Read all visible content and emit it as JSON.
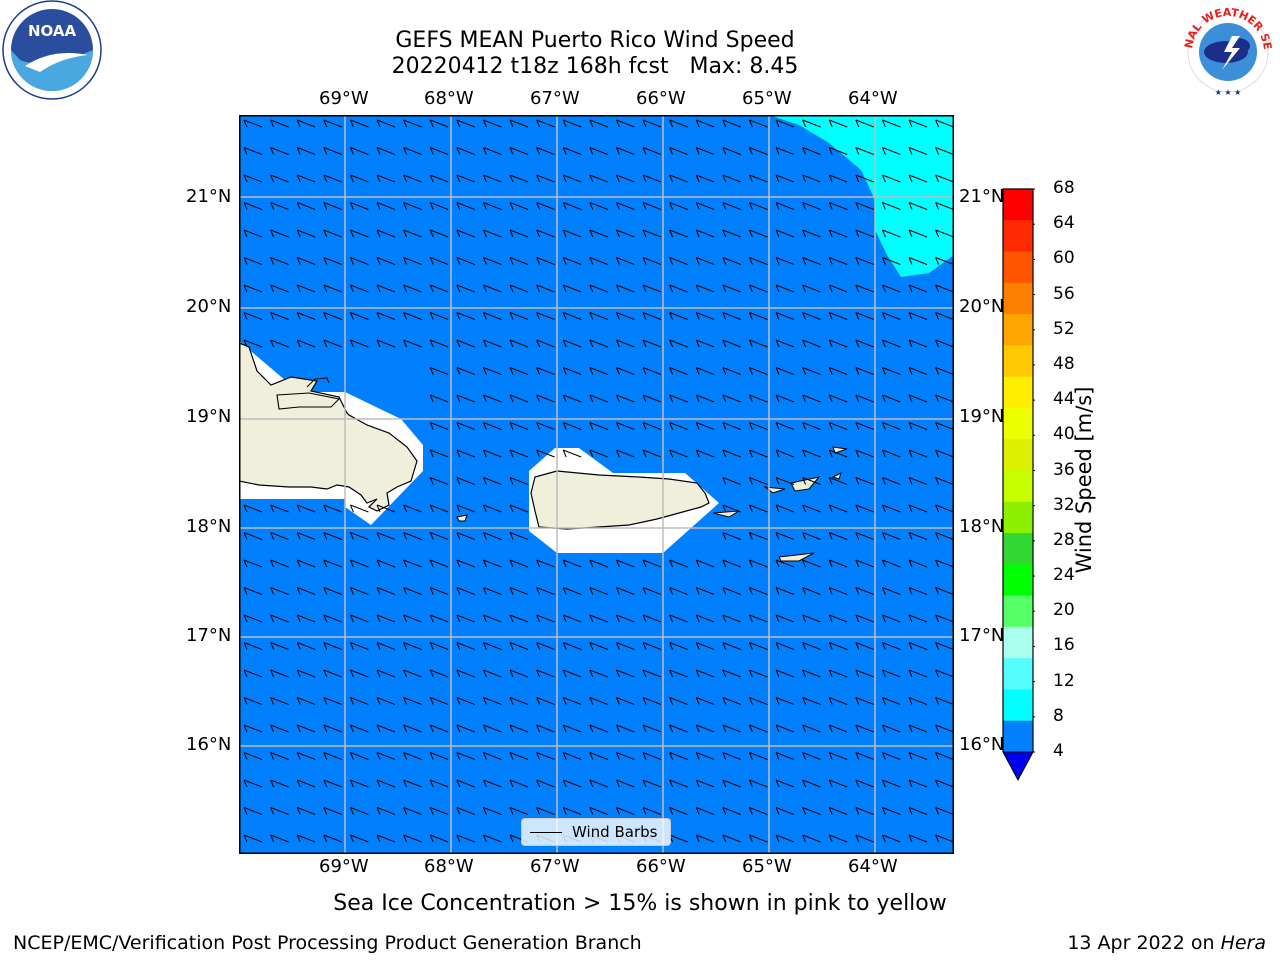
{
  "title": {
    "line1": "GEFS MEAN Puerto Rico Wind Speed",
    "line2": "20220412 t18z 168h fcst   Max: 8.45"
  },
  "logos": {
    "left": "NOAA",
    "right": "NATIONAL WEATHER SERVICE"
  },
  "axes": {
    "lon_ticks": [
      "69°W",
      "68°W",
      "67°W",
      "66°W",
      "65°W",
      "64°W"
    ],
    "lat_ticks": [
      "21°N",
      "20°N",
      "19°N",
      "18°N",
      "17°N",
      "16°N"
    ]
  },
  "colorbar": {
    "label": "Wind Speed [m/s]",
    "ticks": [
      "68",
      "64",
      "60",
      "56",
      "52",
      "48",
      "44",
      "40",
      "36",
      "32",
      "28",
      "24",
      "20",
      "16",
      "12",
      "8",
      "4"
    ],
    "colors": [
      "#ff0000",
      "#ff2a00",
      "#ff5500",
      "#ff7f00",
      "#ffa500",
      "#ffc800",
      "#ffee00",
      "#eeff00",
      "#dcf000",
      "#c8ff00",
      "#8cf000",
      "#32d732",
      "#00ff00",
      "#55ff66",
      "#aaffee",
      "#55ffff",
      "#00ffff",
      "#0080ff"
    ],
    "under_color": "#0000ee"
  },
  "legend": {
    "label": "Wind Barbs"
  },
  "caption": "Sea Ice Concentration > 15% is shown in pink to yellow",
  "footer": {
    "left": "NCEP/EMC/Verification Post Processing Product Generation Branch",
    "right_prefix": "13 Apr 2022 on ",
    "right_host": "Hera"
  },
  "colors": {
    "ocean": "#0080ff",
    "cyan_region": "#00ffff",
    "land": "#efefdc",
    "mask": "#ffffff"
  }
}
